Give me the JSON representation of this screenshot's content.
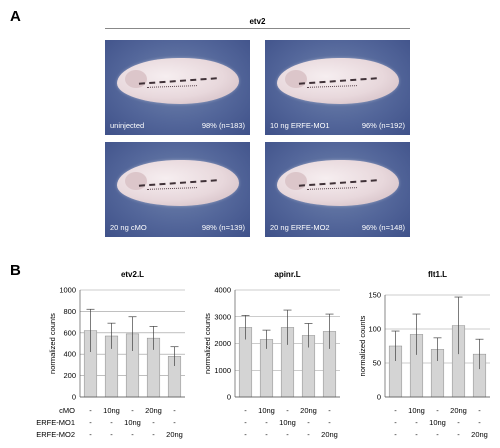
{
  "panels": {
    "a": "A",
    "b": "B"
  },
  "panel_a": {
    "gene": "etv2",
    "images": [
      {
        "label": "uninjected",
        "stat": "98% (n=183)"
      },
      {
        "label": "10 ng ERFE-MO1",
        "stat": "96% (n=192)"
      },
      {
        "label": "20 ng cMO",
        "stat": "98% (n=139)"
      },
      {
        "label": "20 ng ERFE-MO2",
        "stat": "96% (n=148)"
      }
    ]
  },
  "colors": {
    "bar": "#d4d4d4",
    "bar_stroke": "#8a8a8a",
    "grid": "#9a9a9a",
    "photo_bg": "#53669a"
  },
  "chart_data": [
    {
      "type": "bar",
      "title": "etv2.L",
      "ylabel": "normalized counts",
      "ylim": [
        0,
        1000
      ],
      "yticks": [
        "0",
        "200",
        "400",
        "600",
        "800",
        "1000"
      ],
      "values": [
        620,
        570,
        590,
        550,
        380
      ],
      "errors": [
        200,
        120,
        160,
        110,
        90
      ],
      "grid": true
    },
    {
      "type": "bar",
      "title": "apinr.L",
      "ylabel": "normalized counts",
      "ylim": [
        0,
        4000
      ],
      "yticks": [
        "0",
        "1000",
        "2000",
        "3000",
        "4000"
      ],
      "values": [
        2600,
        2150,
        2600,
        2300,
        2450
      ],
      "errors": [
        450,
        350,
        650,
        450,
        650
      ],
      "grid": true
    },
    {
      "type": "bar",
      "title": "flt1.L",
      "ylabel": "normalized counts",
      "ylim": [
        0,
        150
      ],
      "yticks": [
        "0",
        "50",
        "100",
        "150"
      ],
      "values": [
        75,
        92,
        70,
        105,
        63
      ],
      "errors": [
        22,
        30,
        17,
        42,
        22
      ],
      "grid": true
    }
  ],
  "conditions": {
    "rows": [
      {
        "label": "cMO",
        "cells": [
          "-",
          "10ng",
          "-",
          "20ng",
          "-"
        ]
      },
      {
        "label": "ERFE-MO1",
        "cells": [
          "-",
          "-",
          "10ng",
          "-",
          "-"
        ]
      },
      {
        "label": "ERFE-MO2",
        "cells": [
          "-",
          "-",
          "-",
          "-",
          "20ng"
        ]
      }
    ]
  }
}
